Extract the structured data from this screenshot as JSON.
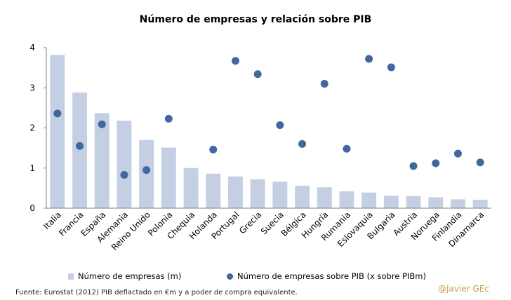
{
  "chart_data": {
    "type": "bar",
    "title": "Número de empresas y relación sobre PIB",
    "categories": [
      "Italia",
      "Francia",
      "España",
      "Alemania",
      "Reino Unido",
      "Polonia",
      "Chequia",
      "Holanda",
      "Portugal",
      "Grecia",
      "Suecia",
      "Bélgica",
      "Hungría",
      "Rumania",
      "Eslovaquia",
      "Bulgaria",
      "Austria",
      "Noruega",
      "Finlandia",
      "Dinamarca"
    ],
    "series": [
      {
        "name": "Número de empresas (m)",
        "kind": "bar",
        "color": "#c5cfe3",
        "values": [
          3.82,
          2.88,
          2.37,
          2.18,
          1.7,
          1.51,
          1.0,
          0.86,
          0.79,
          0.72,
          0.66,
          0.56,
          0.52,
          0.42,
          0.39,
          0.31,
          0.3,
          0.27,
          0.22,
          0.21
        ]
      },
      {
        "name": "Número de empresas sobre PIB (x sobre PIBm)",
        "kind": "scatter",
        "color": "#41679d",
        "values": [
          2.36,
          1.55,
          2.09,
          0.83,
          0.95,
          2.23,
          null,
          1.46,
          3.67,
          3.34,
          2.07,
          1.6,
          3.1,
          1.48,
          3.72,
          3.51,
          1.05,
          1.12,
          1.36,
          1.14
        ]
      }
    ],
    "yticks": [
      "0",
      "1",
      "2",
      "3",
      "4"
    ],
    "ylim": [
      0,
      4
    ]
  },
  "legend": {
    "bar_label": "Número de empresas (m)",
    "dot_label": "Número de empresas sobre PIB (x sobre PIBm)"
  },
  "footer": {
    "source": "Fuente: Eurostat (2012) PIB deflactado en €m y a poder de compra equivalente.",
    "credit": "@Javier GEc"
  },
  "colors": {
    "bar": "#c5cfe3",
    "dot": "#41679d",
    "axis": "#7f7f7f"
  }
}
